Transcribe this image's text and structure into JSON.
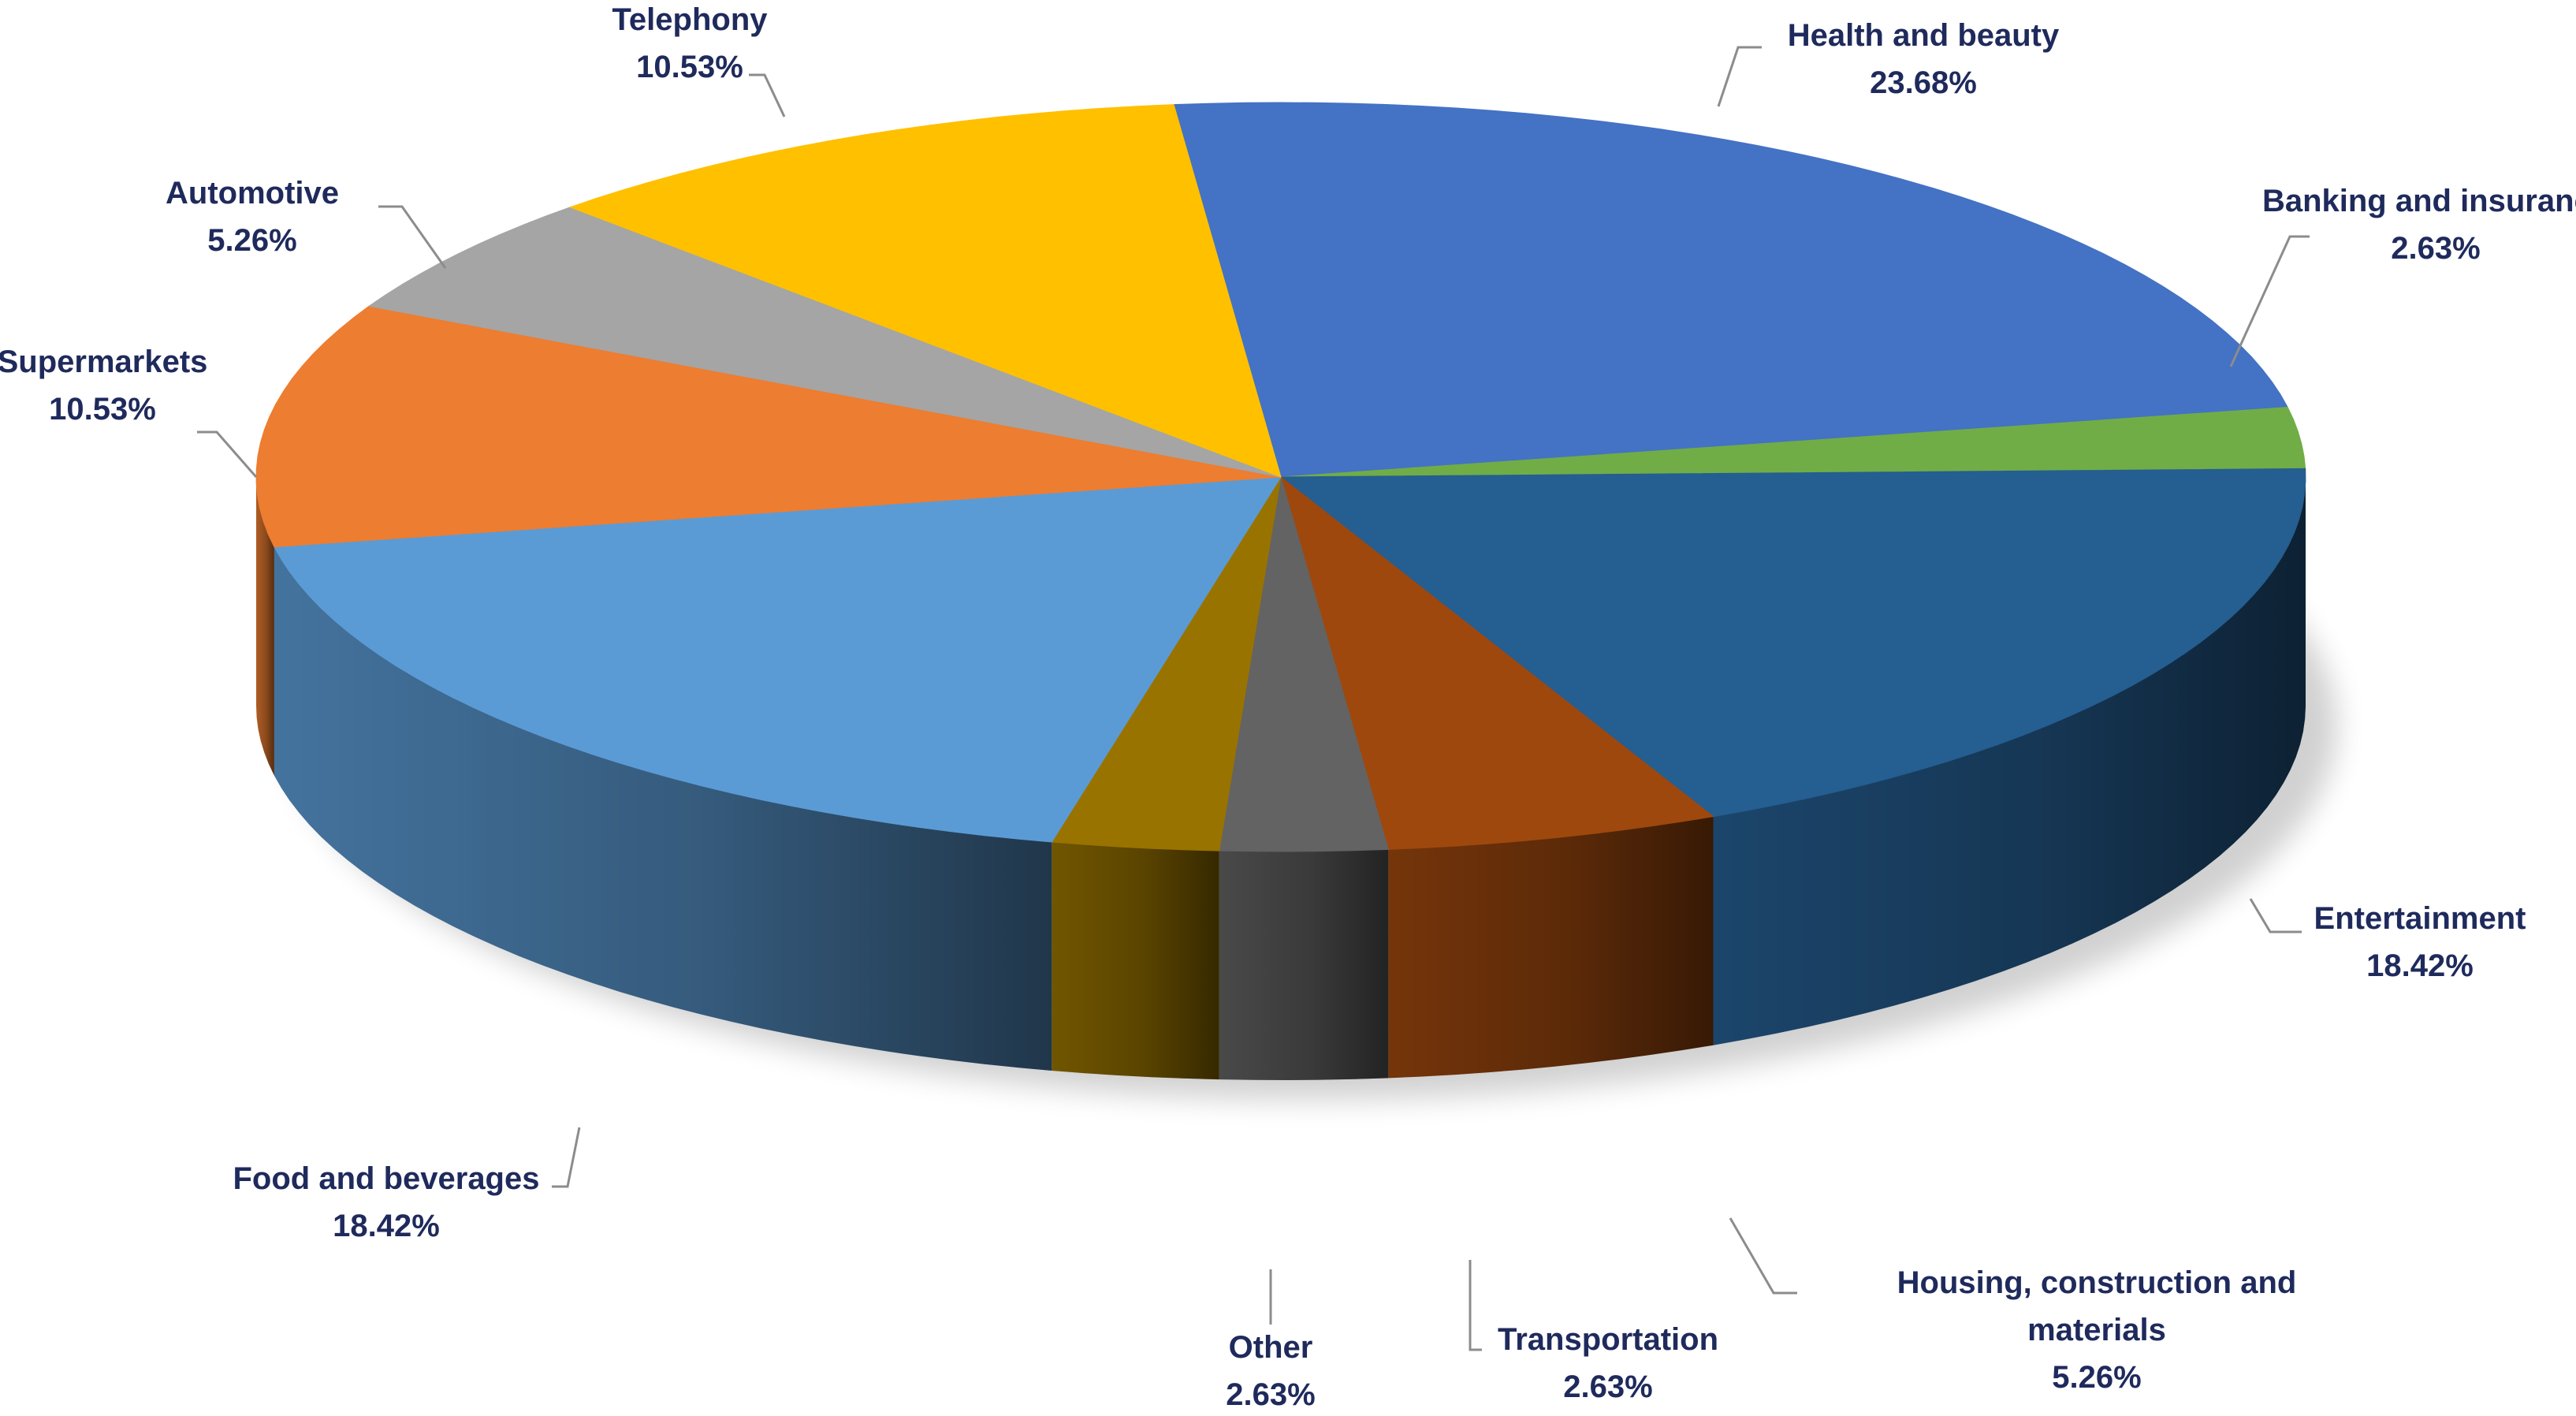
{
  "chart_data": {
    "type": "pie",
    "title": "",
    "legend": "none",
    "slices": [
      {
        "label": "Health and beauty",
        "value_text": "23.68%",
        "value": 23.68,
        "color": "#4472C4"
      },
      {
        "label": "Banking and insurance",
        "value_text": "2.63%",
        "value": 2.63,
        "color": "#70AD47"
      },
      {
        "label": "Entertainment",
        "value_text": "18.42%",
        "value": 18.42,
        "color": "#255E91"
      },
      {
        "label": "Housing, construction and materials",
        "value_text": "5.26%",
        "value": 5.26,
        "color": "#9E480E"
      },
      {
        "label": "Transportation",
        "value_text": "2.63%",
        "value": 2.63,
        "color": "#636363"
      },
      {
        "label": "Other",
        "value_text": "2.63%",
        "value": 2.63,
        "color": "#997300"
      },
      {
        "label": "Food and beverages",
        "value_text": "18.42%",
        "value": 18.42,
        "color": "#5B9BD5"
      },
      {
        "label": "Supermarkets",
        "value_text": "10.53%",
        "value": 10.53,
        "color": "#ED7D31"
      },
      {
        "label": "Automotive",
        "value_text": "5.26%",
        "value": 5.26,
        "color": "#A5A5A5"
      },
      {
        "label": "Telephony",
        "value_text": "10.53%",
        "value": 10.53,
        "color": "#FFC000"
      }
    ]
  }
}
